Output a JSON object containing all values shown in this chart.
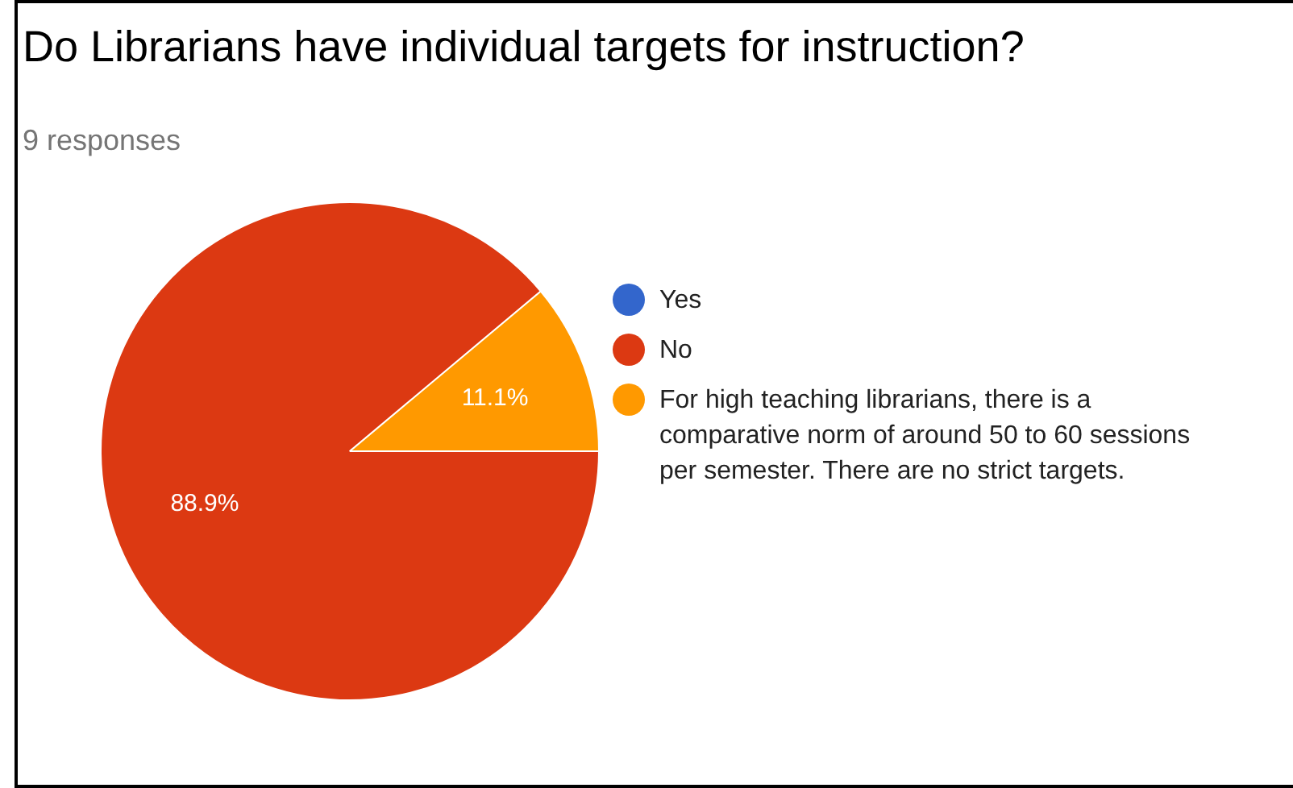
{
  "chart_data": {
    "type": "pie",
    "title": "Do Librarians have individual targets for instruction?",
    "subtitle": "9 responses",
    "categories": [
      "Yes",
      "No",
      "For high teaching librarians, there is a comparative norm of around 50 to 60 sessions per semester. There are no strict targets."
    ],
    "values": [
      0,
      88.9,
      11.1
    ],
    "colors": [
      "#3366cc",
      "#dc3912",
      "#ff9900"
    ],
    "value_labels": [
      null,
      "88.9%",
      "11.1%"
    ],
    "legend": "right"
  }
}
